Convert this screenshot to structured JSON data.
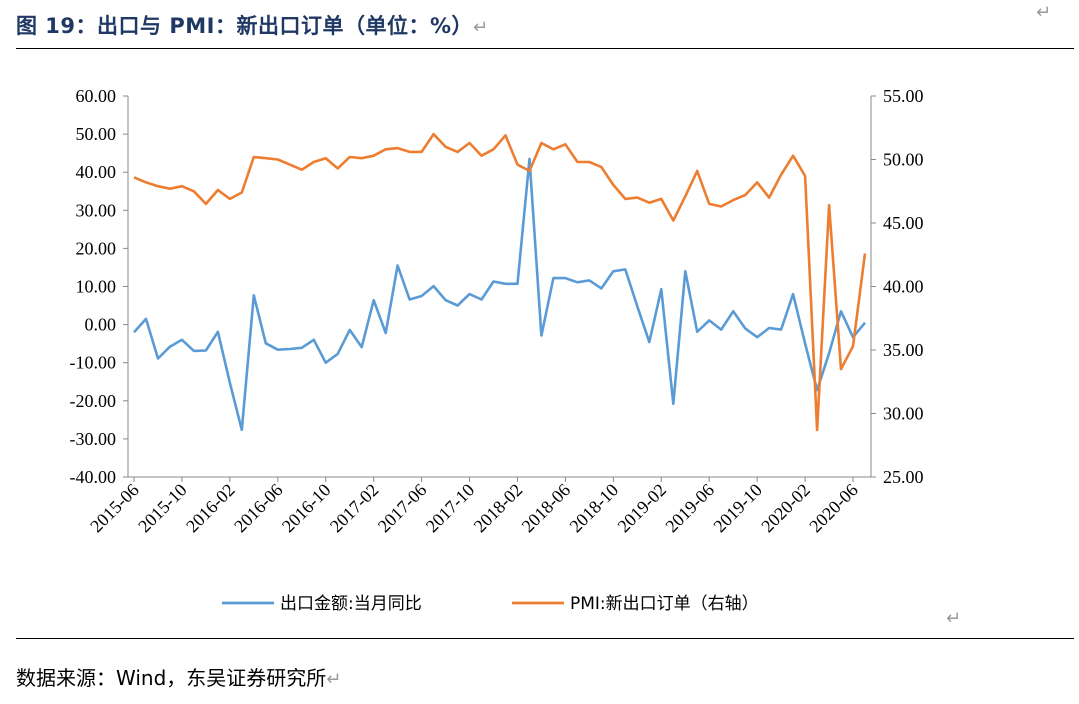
{
  "title": "图 19：出口与 PMI：新出口订单（单位：%）",
  "return_mark": "↵",
  "source": "数据来源：Wind，东吴证券研究所",
  "chart_data": {
    "type": "line",
    "title": "",
    "x_tick_labels": [
      "2015-06",
      "2015-10",
      "2016-02",
      "2016-06",
      "2016-10",
      "2017-02",
      "2017-06",
      "2017-10",
      "2018-02",
      "2018-06",
      "2018-10",
      "2019-02",
      "2019-06",
      "2019-10",
      "2020-02",
      "2020-06"
    ],
    "y_left": {
      "min": -40,
      "max": 60,
      "step": 10,
      "ticks": [
        "-40.00",
        "-30.00",
        "-20.00",
        "-10.00",
        "0.00",
        "10.00",
        "20.00",
        "30.00",
        "40.00",
        "50.00",
        "60.00"
      ]
    },
    "y_right": {
      "min": 25,
      "max": 55,
      "step": 5,
      "ticks": [
        "25.00",
        "30.00",
        "35.00",
        "40.00",
        "45.00",
        "50.00",
        "55.00"
      ]
    },
    "grid": false,
    "legend_position": "bottom",
    "series": [
      {
        "name": "出口金额:当月同比",
        "axis": "left",
        "color": "#5b9bd5",
        "values": [
          -2.0,
          1.5,
          -8.9,
          -5.8,
          -4.0,
          -6.9,
          -6.8,
          -1.9,
          -15.3,
          -27.6,
          7.7,
          -4.9,
          -6.6,
          -6.4,
          -6.1,
          -4.0,
          -10.0,
          -7.7,
          -1.4,
          -5.9,
          6.4,
          -2.2,
          15.5,
          6.6,
          7.5,
          10.1,
          6.4,
          5.0,
          8.0,
          6.6,
          11.3,
          10.7,
          10.7,
          43.5,
          -2.9,
          12.2,
          12.2,
          11.1,
          11.6,
          9.5,
          14.0,
          14.5,
          4.8,
          -4.6,
          9.3,
          -20.8,
          14.0,
          -1.9,
          1.1,
          -1.3,
          3.5,
          -1.0,
          -3.3,
          -0.9,
          -1.3,
          8.0,
          -5.0,
          -17.2,
          -7.5,
          3.5,
          -3.3,
          0.5
        ]
      },
      {
        "name": "PMI:新出口订单（右轴）",
        "axis": "right",
        "color": "#ed7d31",
        "values": [
          48.6,
          48.2,
          47.9,
          47.7,
          47.9,
          47.5,
          46.5,
          47.6,
          46.9,
          47.4,
          50.2,
          50.1,
          50.0,
          49.6,
          49.2,
          49.8,
          50.1,
          49.3,
          50.2,
          50.1,
          50.3,
          50.8,
          50.9,
          50.6,
          50.6,
          52.0,
          51.0,
          50.6,
          51.3,
          50.3,
          50.8,
          51.9,
          49.6,
          49.1,
          51.3,
          50.8,
          51.2,
          49.8,
          49.8,
          49.4,
          48.0,
          46.9,
          47.0,
          46.6,
          46.9,
          45.2,
          47.1,
          49.1,
          46.5,
          46.3,
          46.8,
          47.2,
          48.2,
          47.0,
          48.8,
          50.3,
          48.7,
          28.7,
          46.4,
          33.5,
          35.3,
          42.6
        ]
      }
    ]
  }
}
